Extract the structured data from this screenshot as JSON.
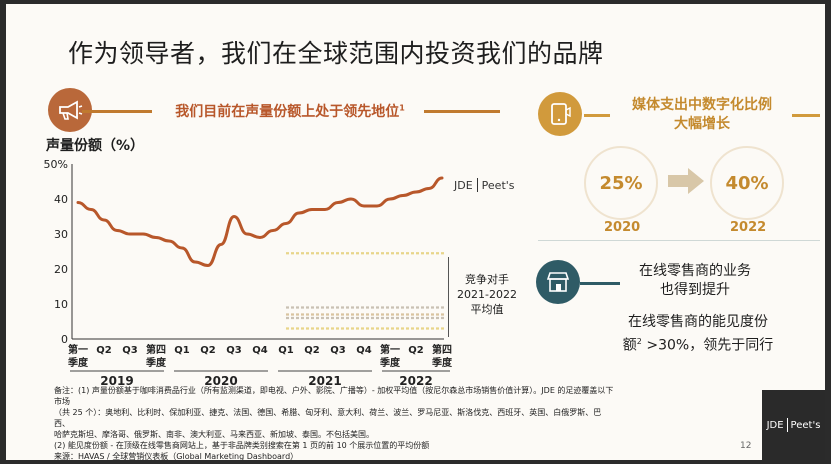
{
  "title": "作为领导者，我们在全球范围内投资我们的品牌",
  "left_header": {
    "text": "我们目前在声量份额上处于领先地位",
    "sup": "1",
    "icon": "megaphone-icon"
  },
  "logo_small": {
    "left": "JDE",
    "right": "Peet's"
  },
  "avg_label": {
    "line1": "竞争对手",
    "line2": "2021-2022",
    "line3": "平均值"
  },
  "chart_data": {
    "type": "line",
    "ylabel": "声量份额（%）",
    "ylim": [
      0,
      50
    ],
    "yticks": [
      "50%",
      "40",
      "30",
      "20",
      "10",
      "0"
    ],
    "ytick_values": [
      50,
      40,
      30,
      20,
      10,
      0
    ],
    "quarters": [
      "第一季度",
      "Q2",
      "Q3",
      "第四季度",
      "Q1",
      "Q2",
      "Q3",
      "Q4",
      "Q1",
      "Q2",
      "Q3",
      "Q4",
      "第一季度",
      "Q2",
      "第四季度"
    ],
    "years": [
      {
        "label": "2019",
        "start": 0,
        "end": 3
      },
      {
        "label": "2020",
        "start": 4,
        "end": 7
      },
      {
        "label": "2021",
        "start": 8,
        "end": 11
      },
      {
        "label": "2022",
        "start": 12,
        "end": 14
      }
    ],
    "series": [
      {
        "color": "#b8572a",
        "x": [
          0,
          0.5,
          1,
          1.5,
          2,
          2.5,
          3,
          3.5,
          4,
          4.5,
          5,
          5.5,
          6,
          6.5,
          7,
          7.5,
          8,
          8.5,
          9,
          9.5,
          10,
          10.5,
          11,
          11.5,
          12,
          12.5,
          13,
          13.5,
          14
        ],
        "values": [
          39,
          37,
          34,
          31,
          30,
          30,
          29,
          28,
          26,
          22,
          21,
          27,
          35,
          30,
          29,
          31,
          33,
          36,
          37,
          37,
          39,
          40,
          38,
          38,
          40,
          41,
          42,
          43,
          46
        ]
      }
    ],
    "competitor_averages": [
      {
        "color": "#e8d58a",
        "value": 24.5
      },
      {
        "color": "#c9c1b4",
        "value": 9
      },
      {
        "color": "#d9c4a0",
        "value": 7
      },
      {
        "color": "#c9c1b4",
        "value": 6
      },
      {
        "color": "#e8d58a",
        "value": 3
      }
    ],
    "competitor_x_range": [
      8,
      14
    ]
  },
  "notes": [
    "备注：(1) 声量份额基于咖啡消费品行业（所有监测渠道，即电视、户外、影院、广播等）- 加权平均值（按尼尔森总市场销售价值计算）。JDE 的足迹覆盖以下市场",
    "（共 25 个）：奥地利、比利时、保加利亚、捷克、法国、德国、希腊、匈牙利、意大利、荷兰、波兰、罗马尼亚、斯洛伐克、西班牙、英国、白俄罗斯、巴西、",
    "哈萨克斯坦、摩洛哥、俄罗斯、南非、澳大利亚、马来西亚、新加坡、泰国。不包括美国。",
    "(2) 能见度份额 - 在顶级在线零售商网站上，基于非品牌类别搜索在第 1 页的前 10 个展示位置的平均份额",
    "来源：HAVAS / 全球营销仪表板（Global Marketing Dashboard）"
  ],
  "right_header": {
    "line1": "媒体支出中数字化比例",
    "line2": "大幅增长",
    "icon": "phone-icon"
  },
  "digital_share": [
    {
      "value": "25%",
      "year": "2020"
    },
    {
      "value": "40%",
      "year": "2022"
    }
  ],
  "retail": {
    "icon": "storefront-icon",
    "title_line1": "在线零售商的业务",
    "title_line2": "也得到提升",
    "body_line1": "在线零售商的能见度份",
    "body_line2_a": "额",
    "body_sup": "2",
    "body_line2_b": " >30%，领先于同行"
  },
  "page_number": "12",
  "logo_big": {
    "left": "JDE",
    "right": "Peet's"
  },
  "colors": {
    "brand_red": "#b8572a",
    "gold": "#c48a2e",
    "teal": "#2f5b66"
  }
}
